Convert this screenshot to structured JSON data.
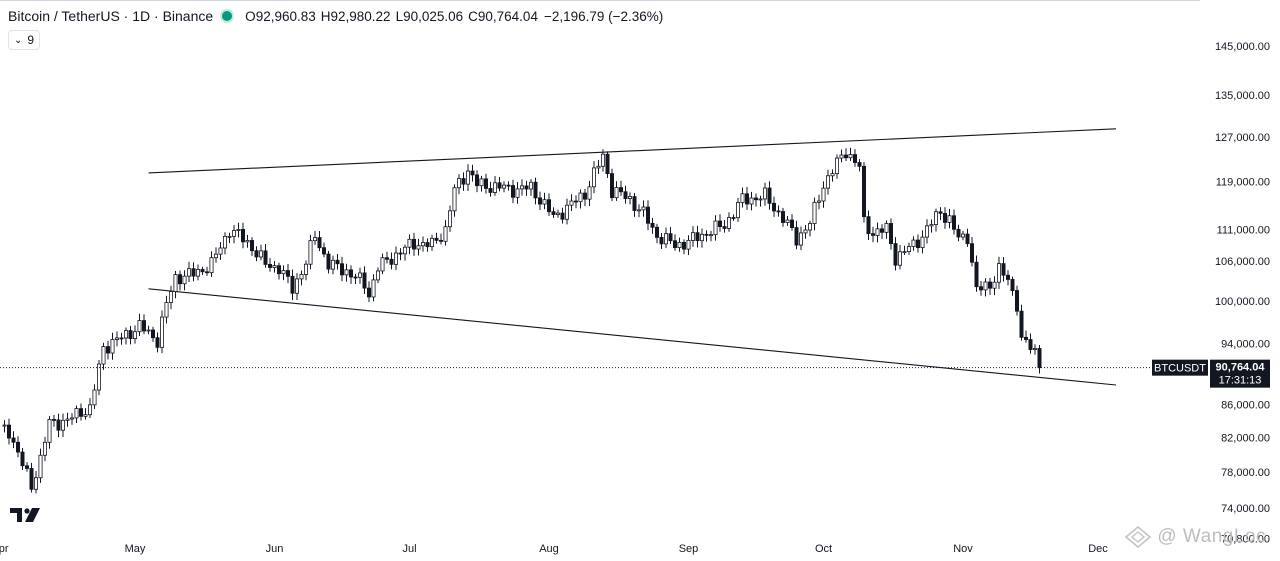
{
  "header": {
    "title": "Bitcoin / TetherUS · 1D · Binance",
    "status_color": "#089981",
    "open_label": "O",
    "open": "92,960.83",
    "high_label": "H",
    "high": "92,980.22",
    "low_label": "L",
    "low": "90,025.06",
    "close_label": "C",
    "close": "90,764.04",
    "change": "−2,196.79 (−2.36%)",
    "change_color": "#131722"
  },
  "indicator_toggle": {
    "icon": "chevron-down-icon",
    "count": "9"
  },
  "logo": {
    "icon": "tradingview-logo"
  },
  "watermark": {
    "text": "@ WangLoc",
    "icon": "diamond-logo-icon"
  },
  "colors": {
    "up": "#089981",
    "down": "#131722",
    "candle": "#131722",
    "trendline": "#131722",
    "grid": "none"
  },
  "chart_data": {
    "type": "candlestick",
    "symbol": "BTCUSDT",
    "price_label": "90,764.04",
    "countdown": "17:31:13",
    "last_price": 90764.04,
    "y_scale": "log",
    "ylim": [
      68500,
      155000
    ],
    "y_ticks": [
      145000,
      135000,
      127000,
      119000,
      111000,
      106000,
      100000,
      94000,
      86000,
      82000,
      78000,
      74000,
      70800
    ],
    "y_tick_labels": [
      "145,000.00",
      "135,000.00",
      "127,000.00",
      "119,000.00",
      "111,000.00",
      "106,000.00",
      "100,000.00",
      "94,000.00",
      "86,000.00",
      "82,000.00",
      "78,000.00",
      "74,000.00",
      "70,800.00"
    ],
    "x_ticks": [
      "2025-04-01",
      "2025-05-01",
      "2025-06-01",
      "2025-07-01",
      "2025-08-01",
      "2025-09-01",
      "2025-10-01",
      "2025-11-01",
      "2025-12-01"
    ],
    "x_tick_labels": [
      "Apr",
      "May",
      "Jun",
      "Jul",
      "Aug",
      "Sep",
      "Oct",
      "Nov",
      "Dec"
    ],
    "trendlines": [
      {
        "from": [
          "2025-05-04",
          120500
        ],
        "to": [
          "2025-12-05",
          128500
        ]
      },
      {
        "from": [
          "2025-05-04",
          101800
        ],
        "to": [
          "2025-12-05",
          88500
        ]
      }
    ],
    "close_path": [
      [
        "2025-04-01",
        83000
      ],
      [
        "2025-04-03",
        82800
      ],
      [
        "2025-04-06",
        78800
      ],
      [
        "2025-04-08",
        76400
      ],
      [
        "2025-04-10",
        79500
      ],
      [
        "2025-04-12",
        83700
      ],
      [
        "2025-04-16",
        84000
      ],
      [
        "2025-04-19",
        85200
      ],
      [
        "2025-04-21",
        85400
      ],
      [
        "2025-04-22",
        88000
      ],
      [
        "2025-04-24",
        93500
      ],
      [
        "2025-04-28",
        94800
      ],
      [
        "2025-05-02",
        96400
      ],
      [
        "2025-05-06",
        94500
      ],
      [
        "2025-05-08",
        99500
      ],
      [
        "2025-05-10",
        103500
      ],
      [
        "2025-05-14",
        104000
      ],
      [
        "2025-05-18",
        105500
      ],
      [
        "2025-05-22",
        111000
      ],
      [
        "2025-05-26",
        109000
      ],
      [
        "2025-05-30",
        105500
      ],
      [
        "2025-06-02",
        105000
      ],
      [
        "2025-06-05",
        101800
      ],
      [
        "2025-06-08",
        105800
      ],
      [
        "2025-06-10",
        110000
      ],
      [
        "2025-06-13",
        105500
      ],
      [
        "2025-06-17",
        104500
      ],
      [
        "2025-06-21",
        102500
      ],
      [
        "2025-06-22",
        101000
      ],
      [
        "2025-06-24",
        105000
      ],
      [
        "2025-06-28",
        107000
      ],
      [
        "2025-07-02",
        108800
      ],
      [
        "2025-07-06",
        108500
      ],
      [
        "2025-07-09",
        111000
      ],
      [
        "2025-07-11",
        117500
      ],
      [
        "2025-07-14",
        121000
      ],
      [
        "2025-07-16",
        118500
      ],
      [
        "2025-07-21",
        118000
      ],
      [
        "2025-07-25",
        117600
      ],
      [
        "2025-07-28",
        118000
      ],
      [
        "2025-08-02",
        113000
      ],
      [
        "2025-08-05",
        114500
      ],
      [
        "2025-08-09",
        117000
      ],
      [
        "2025-08-13",
        123500
      ],
      [
        "2025-08-15",
        117500
      ],
      [
        "2025-08-19",
        116000
      ],
      [
        "2025-08-22",
        113500
      ],
      [
        "2025-08-25",
        110000
      ],
      [
        "2025-08-29",
        108500
      ],
      [
        "2025-09-01",
        109000
      ],
      [
        "2025-09-05",
        110500
      ],
      [
        "2025-09-09",
        111700
      ],
      [
        "2025-09-13",
        115900
      ],
      [
        "2025-09-18",
        116500
      ],
      [
        "2025-09-22",
        112800
      ],
      [
        "2025-09-25",
        109500
      ],
      [
        "2025-09-28",
        112000
      ],
      [
        "2025-10-01",
        118500
      ],
      [
        "2025-10-06",
        124500
      ],
      [
        "2025-10-09",
        121500
      ],
      [
        "2025-10-10",
        112000
      ],
      [
        "2025-10-12",
        110500
      ],
      [
        "2025-10-15",
        111000
      ],
      [
        "2025-10-17",
        106500
      ],
      [
        "2025-10-21",
        108500
      ],
      [
        "2025-10-23",
        110000
      ],
      [
        "2025-10-27",
        114000
      ],
      [
        "2025-10-29",
        112500
      ],
      [
        "2025-10-31",
        109500
      ],
      [
        "2025-11-02",
        110000
      ],
      [
        "2025-11-04",
        101500
      ],
      [
        "2025-11-07",
        102500
      ],
      [
        "2025-11-09",
        104700
      ],
      [
        "2025-11-11",
        103000
      ],
      [
        "2025-11-13",
        99700
      ],
      [
        "2025-11-14",
        94500
      ],
      [
        "2025-11-17",
        92900
      ],
      [
        "2025-11-18",
        90764
      ]
    ]
  }
}
